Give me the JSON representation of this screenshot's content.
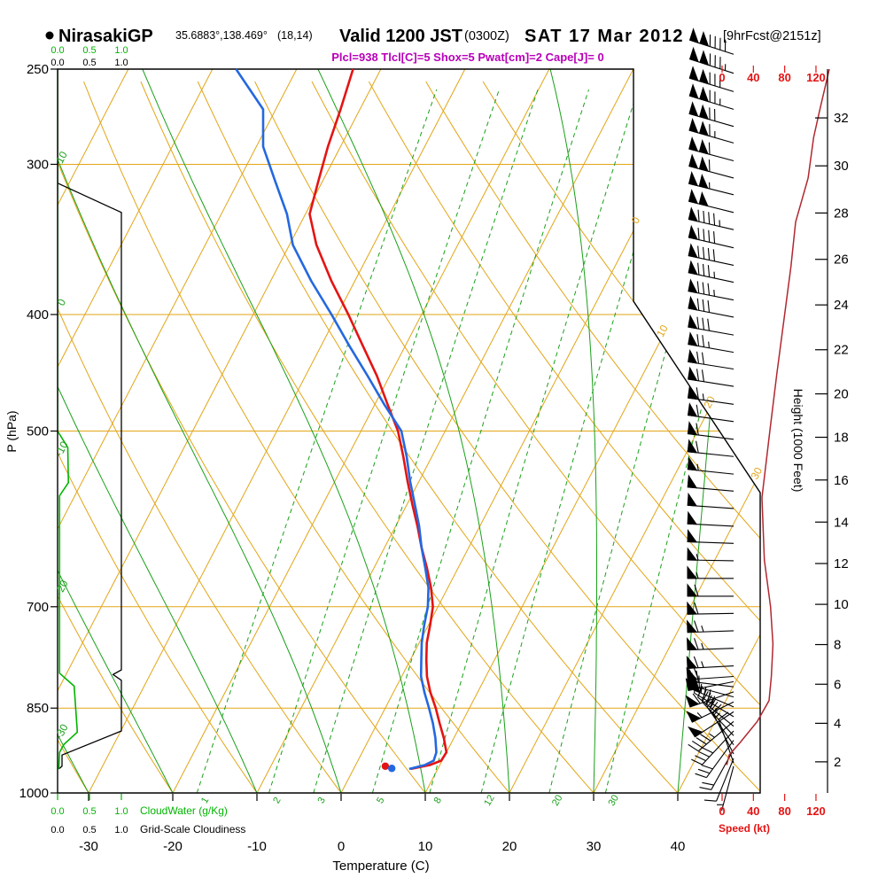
{
  "header": {
    "bullet": "●",
    "station": "NirasakiGP",
    "coords": "35.6883°,138.469°",
    "grid_point": "(18,14)",
    "valid": "Valid 1200 JST",
    "valid_zulu": "(0300Z)",
    "valid_date": "SAT 17 Mar 2012",
    "fcst_tag": "[9hrFcst@2151z]",
    "params": "Plcl=938 Tlcl[C]=5 Shox=5 Pwat[cm]=2 Cape[J]= 0"
  },
  "axes": {
    "pressure_label": "P (hPa)",
    "pressure_ticks": [
      250,
      300,
      400,
      500,
      700,
      850,
      1000
    ],
    "temp_label": "Temperature (C)",
    "temp_ticks": [
      -30,
      -20,
      -10,
      0,
      10,
      20,
      30,
      40
    ],
    "height_label": "Height (1000 Feet)",
    "height_ticks": [
      2,
      4,
      6,
      8,
      10,
      12,
      14,
      16,
      18,
      20,
      22,
      24,
      26,
      28,
      30,
      32
    ],
    "speed_label": "Speed (kt)",
    "speed_ticks": [
      0,
      40,
      80,
      120
    ],
    "cloudwater_label": "CloudWater (g/Kg)",
    "cloudiness_label": "Grid-Scale Cloudiness",
    "cloud_scale_ticks": [
      "0.0",
      "0.5",
      "1.0"
    ]
  },
  "colors": {
    "grid_orange": "#e2a516",
    "grid_green": "#18a018",
    "cloud_green": "#00b400",
    "temp_red": "#e41414",
    "dew_blue": "#2468e0",
    "height_speed_red": "#b02830",
    "axis_red": "#e41414",
    "magenta": "#b800b8",
    "black": "#000000"
  },
  "chart_data": {
    "type": "line",
    "variant": "skew-t log-p thermodynamic sounding",
    "pressure_axis_hpa": {
      "min": 250,
      "max": 1000,
      "gridlines": [
        300,
        400,
        500,
        700,
        850
      ]
    },
    "isotherms_c": {
      "from": -80,
      "to": 40,
      "step": 10
    },
    "dry_adiabats_c": {
      "from": -40,
      "to": 90,
      "step": 10
    },
    "moist_adiabats_c": {
      "from": -40,
      "to": 40,
      "step": 10
    },
    "mixing_ratio_g_per_kg": [
      1,
      2,
      3,
      5,
      8,
      12,
      20,
      30
    ],
    "isotherm_edge_labels_c": [
      0,
      10,
      20,
      30
    ],
    "moist_adiabat_edge_labels": [
      {
        "label": "10",
        "p": 297
      },
      {
        "label": "0",
        "p": 392
      },
      {
        "label": "-10",
        "p": 519
      },
      {
        "label": "-20",
        "p": 677
      },
      {
        "label": "-30",
        "p": 892
      }
    ],
    "sounding_p_t_td": [
      [
        955,
        6.8,
        6.6
      ],
      [
        948,
        8.8,
        8.2
      ],
      [
        940,
        9.9,
        9.0
      ],
      [
        925,
        10.0,
        8.8
      ],
      [
        900,
        8.8,
        7.8
      ],
      [
        875,
        7.4,
        6.6
      ],
      [
        850,
        6.0,
        5.2
      ],
      [
        825,
        4.4,
        3.7
      ],
      [
        800,
        3.0,
        2.3
      ],
      [
        775,
        1.9,
        1.3
      ],
      [
        750,
        0.9,
        0.3
      ],
      [
        725,
        0.2,
        -0.5
      ],
      [
        700,
        -0.6,
        -1.2
      ],
      [
        675,
        -2.0,
        -2.3
      ],
      [
        650,
        -3.7,
        -3.9
      ],
      [
        625,
        -5.6,
        -5.6
      ],
      [
        600,
        -7.4,
        -7.2
      ],
      [
        575,
        -9.4,
        -9.1
      ],
      [
        550,
        -11.4,
        -11.1
      ],
      [
        525,
        -13.4,
        -13.0
      ],
      [
        500,
        -15.6,
        -15.2
      ],
      [
        475,
        -18.5,
        -18.9
      ],
      [
        450,
        -21.5,
        -22.6
      ],
      [
        425,
        -25.0,
        -26.6
      ],
      [
        400,
        -28.7,
        -30.7
      ],
      [
        375,
        -32.8,
        -35.2
      ],
      [
        350,
        -36.8,
        -39.6
      ],
      [
        330,
        -39.5,
        -42.2
      ],
      [
        310,
        -40.5,
        -45.6
      ],
      [
        290,
        -41.5,
        -49.2
      ],
      [
        270,
        -42.3,
        -51.5
      ],
      [
        250,
        -43.3,
        -57.2
      ]
    ],
    "parcel_dots": [
      {
        "p": 950,
        "t_c": 3.6,
        "color": "#e41414"
      },
      {
        "p": 954,
        "t_c": 4.5,
        "color": "#2468e0"
      }
    ],
    "wind_barbs_p_kt_dir": [
      [
        243,
        140,
        288
      ],
      [
        252,
        136,
        288
      ],
      [
        261,
        130,
        287
      ],
      [
        270,
        125,
        287
      ],
      [
        279,
        120,
        286
      ],
      [
        288,
        115,
        286
      ],
      [
        298,
        112,
        285
      ],
      [
        308,
        110,
        285
      ],
      [
        318,
        105,
        284
      ],
      [
        329,
        98,
        284
      ],
      [
        340,
        93,
        283
      ],
      [
        352,
        89,
        283
      ],
      [
        364,
        88,
        282
      ],
      [
        376,
        85,
        282
      ],
      [
        389,
        83,
        281
      ],
      [
        402,
        80,
        281
      ],
      [
        416,
        78,
        280
      ],
      [
        430,
        74,
        280
      ],
      [
        444,
        71,
        279
      ],
      [
        459,
        68,
        279
      ],
      [
        475,
        65,
        278
      ],
      [
        491,
        62,
        278
      ],
      [
        508,
        60,
        277
      ],
      [
        525,
        58,
        276
      ],
      [
        543,
        55,
        276
      ],
      [
        561,
        52,
        275
      ],
      [
        580,
        51,
        274
      ],
      [
        600,
        52,
        273
      ],
      [
        620,
        52,
        272
      ],
      [
        641,
        53,
        271
      ],
      [
        663,
        55,
        270
      ],
      [
        686,
        59,
        270
      ],
      [
        709,
        62,
        269
      ],
      [
        733,
        63,
        268
      ],
      [
        758,
        65,
        268
      ],
      [
        784,
        64,
        267
      ],
      [
        800,
        62,
        266
      ],
      [
        808,
        61,
        259
      ],
      [
        816,
        60,
        277
      ],
      [
        824,
        59,
        251
      ],
      [
        832,
        58,
        285
      ],
      [
        840,
        56,
        244
      ],
      [
        848,
        53,
        293
      ],
      [
        856,
        50,
        237
      ],
      [
        864,
        47,
        301
      ],
      [
        872,
        45,
        230
      ],
      [
        880,
        42,
        309
      ],
      [
        888,
        39,
        223
      ],
      [
        896,
        33,
        317
      ],
      [
        904,
        28,
        216
      ],
      [
        912,
        23,
        325
      ],
      [
        920,
        18,
        209
      ],
      [
        928,
        13,
        333
      ],
      [
        936,
        10,
        202
      ],
      [
        944,
        8,
        341
      ],
      [
        950,
        6,
        195
      ]
    ],
    "wind_speed_profile_p_kt": [
      [
        250,
        137
      ],
      [
        270,
        125
      ],
      [
        285,
        117
      ],
      [
        308,
        110
      ],
      [
        335,
        94
      ],
      [
        365,
        88
      ],
      [
        400,
        80
      ],
      [
        448,
        70
      ],
      [
        500,
        61
      ],
      [
        568,
        51
      ],
      [
        640,
        54
      ],
      [
        700,
        62
      ],
      [
        752,
        65
      ],
      [
        800,
        63
      ],
      [
        838,
        60
      ],
      [
        872,
        45
      ],
      [
        908,
        23
      ],
      [
        930,
        9
      ],
      [
        948,
        6
      ]
    ],
    "cloudiness_profile_p_frac": [
      [
        250,
        0
      ],
      [
        311,
        0
      ],
      [
        329,
        1
      ],
      [
        790,
        1
      ],
      [
        797,
        0.87
      ],
      [
        806,
        1
      ],
      [
        888,
        1
      ],
      [
        930,
        0.07
      ],
      [
        950,
        0.07
      ],
      [
        955,
        0.02
      ]
    ],
    "cloudwater_profile_p_gkg": [
      [
        250,
        0
      ],
      [
        500,
        0
      ],
      [
        516,
        0.16
      ],
      [
        552,
        0.17
      ],
      [
        566,
        0.03
      ],
      [
        795,
        0.03
      ],
      [
        815,
        0.26
      ],
      [
        890,
        0.31
      ],
      [
        911,
        0.1
      ],
      [
        925,
        0.03
      ],
      [
        955,
        0.02
      ]
    ],
    "derived": {
      "plcl_hpa": 938,
      "tlcl_c": 5,
      "showalter": 5,
      "pwat_cm": 2,
      "cape_j": 0
    }
  }
}
